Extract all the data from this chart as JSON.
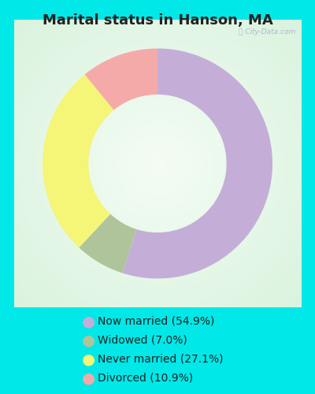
{
  "title": "Marital status in Hanson, MA",
  "slices": [
    54.9,
    7.0,
    27.1,
    10.9
  ],
  "labels": [
    "Now married (54.9%)",
    "Widowed (7.0%)",
    "Never married (27.1%)",
    "Divorced (10.9%)"
  ],
  "colors": [
    "#c4aed8",
    "#afc49a",
    "#f5f577",
    "#f5aaaa"
  ],
  "bg_page": "#00e8e8",
  "bg_chart_center": "#f0faf4",
  "bg_chart_edge": "#c8e8d0",
  "watermark": "City-Data.com",
  "start_angle": 90,
  "donut_width": 0.4,
  "title_fontsize": 13,
  "legend_fontsize": 10
}
